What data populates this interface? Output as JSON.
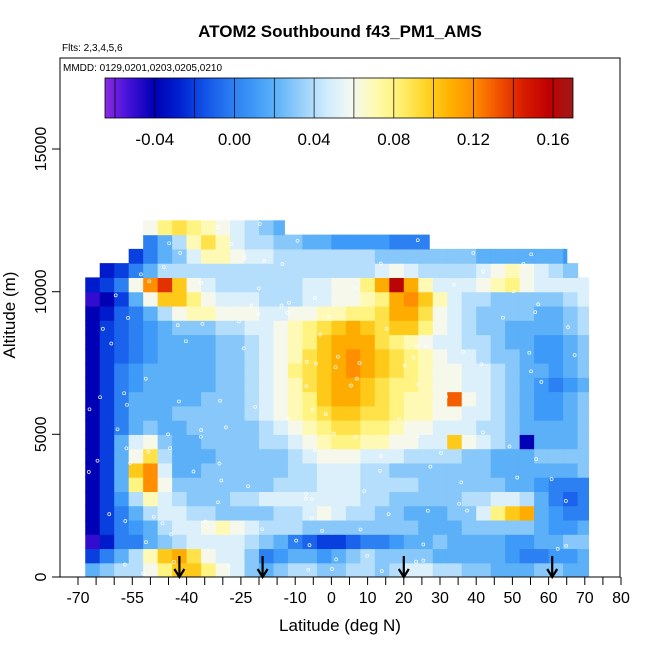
{
  "chart_data": {
    "type": "heatmap",
    "title": "ATOM2 Southbound f43_PM1_AMS",
    "flights_text": "Flts: 2,3,4,5,6",
    "mmdd_text": "MMDD: 0129,0201,0203,0205,0210",
    "xlabel": "Latitude (deg N)",
    "ylabel": "Altitude (m)",
    "xlim": [
      -70,
      82
    ],
    "ylim": [
      0,
      17500
    ],
    "x_ticks": [
      -70,
      -55,
      -40,
      -25,
      -10,
      0,
      10,
      20,
      30,
      40,
      50,
      60,
      70,
      80
    ],
    "x_tick_labels": [
      "-70",
      "-55",
      "-40",
      "-25",
      "-10",
      "0",
      "10",
      "20",
      "30",
      "40",
      "50",
      "60",
      "70",
      "80"
    ],
    "x_minor_ticks": [
      -65,
      -60,
      -50,
      -45,
      -35,
      -30,
      -20,
      -15,
      -5,
      5,
      15,
      25,
      35,
      45,
      55,
      65,
      75
    ],
    "y_ticks": [
      0,
      5000,
      10000,
      15000
    ],
    "y_tick_labels": [
      "0",
      "5000",
      "10000",
      "15000"
    ],
    "colorbar": {
      "range": [
        -0.065,
        0.17
      ],
      "tick_values": [
        -0.04,
        0.0,
        0.04,
        0.08,
        0.12,
        0.16
      ],
      "tick_labels": [
        "-0.04",
        "0.00",
        "0.04",
        "0.08",
        "0.12",
        "0.16"
      ],
      "colors": [
        "#8a2be2",
        "#4010d8",
        "#0000b4",
        "#0020d0",
        "#1050e8",
        "#2878f0",
        "#3c98f8",
        "#60b4f8",
        "#9ad0fb",
        "#d0ecfd",
        "#f4f8f2",
        "#fffab0",
        "#fff070",
        "#ffd528",
        "#ffb200",
        "#ff8c00",
        "#f05000",
        "#d81c00",
        "#c00000",
        "#a01818"
      ]
    },
    "arrow_latitudes": [
      -42,
      -19,
      20,
      61
    ],
    "lat_bins": [
      -68,
      -64,
      -60,
      -56,
      -52,
      -48,
      -44,
      -40,
      -36,
      -32,
      -28,
      -24,
      -20,
      -16,
      -12,
      -8,
      -4,
      0,
      4,
      8,
      12,
      16,
      20,
      24,
      28,
      32,
      36,
      40,
      44,
      48,
      52,
      56,
      60,
      64,
      68
    ],
    "layers": [
      {
        "alt": [
          0,
          500
        ],
        "lat": [
          -68,
          71
        ],
        "values": [
          0.02,
          0.03,
          0.04,
          0.04,
          0.06,
          0.08,
          0.1,
          0.1,
          0.08,
          0.06,
          0.05,
          0.03,
          0.02,
          0.03,
          0.04,
          0.04,
          0.03,
          0.03,
          0.04,
          0.04,
          0.03,
          0.04,
          0.05,
          0.05,
          0.04,
          0.04,
          0.03,
          0.03,
          0.02,
          0.02,
          0.02,
          0.03,
          0.03,
          0.02,
          0.02
        ]
      },
      {
        "alt": [
          500,
          1000
        ],
        "lat": [
          -68,
          71
        ],
        "values": [
          -0.02,
          0.0,
          0.02,
          0.04,
          0.07,
          0.1,
          0.11,
          0.09,
          0.06,
          0.05,
          0.05,
          0.03,
          0.0,
          0.01,
          0.02,
          0.02,
          0.01,
          0.02,
          0.03,
          0.04,
          0.03,
          0.03,
          0.03,
          0.03,
          0.02,
          0.02,
          0.02,
          0.02,
          0.02,
          0.01,
          0.0,
          0.0,
          0.01,
          0.01,
          0.02
        ]
      },
      {
        "alt": [
          1000,
          1500
        ],
        "lat": [
          -68,
          71
        ],
        "values": [
          -0.05,
          -0.03,
          0.0,
          0.0,
          0.02,
          0.03,
          0.04,
          0.05,
          0.05,
          0.05,
          0.05,
          0.04,
          0.03,
          0.02,
          0.0,
          -0.01,
          -0.02,
          -0.02,
          -0.01,
          0.0,
          0.0,
          0.01,
          0.02,
          0.02,
          0.03,
          0.02,
          0.02,
          0.02,
          0.02,
          0.01,
          0.01,
          0.02,
          0.02,
          0.03,
          0.03
        ]
      },
      {
        "alt": [
          1500,
          2000
        ],
        "lat": [
          -68,
          71
        ],
        "values": [
          -0.04,
          -0.02,
          0.0,
          0.01,
          0.02,
          0.04,
          0.05,
          0.05,
          0.06,
          0.07,
          0.06,
          0.05,
          0.04,
          0.04,
          0.04,
          0.03,
          0.03,
          0.03,
          0.03,
          0.03,
          0.03,
          0.03,
          0.03,
          0.02,
          0.02,
          0.02,
          0.03,
          0.03,
          0.03,
          0.03,
          0.03,
          0.02,
          0.01,
          0.01,
          0.02
        ]
      },
      {
        "alt": [
          2000,
          2500
        ],
        "lat": [
          -68,
          71
        ],
        "values": [
          -0.04,
          -0.02,
          0.0,
          0.02,
          0.04,
          0.05,
          0.05,
          0.04,
          0.04,
          0.03,
          0.03,
          0.03,
          0.03,
          0.04,
          0.04,
          0.05,
          0.06,
          0.05,
          0.04,
          0.04,
          0.03,
          0.03,
          0.02,
          0.02,
          0.02,
          0.03,
          0.03,
          0.05,
          0.08,
          0.1,
          0.11,
          0.02,
          0.01,
          0.0,
          0.0
        ]
      },
      {
        "alt": [
          2500,
          3000
        ],
        "lat": [
          -68,
          71
        ],
        "values": [
          -0.04,
          -0.02,
          0.01,
          0.04,
          0.07,
          0.05,
          0.04,
          0.03,
          0.03,
          0.03,
          0.04,
          0.04,
          0.05,
          0.05,
          0.05,
          0.05,
          0.05,
          0.05,
          0.05,
          0.04,
          0.04,
          0.03,
          0.03,
          0.03,
          0.03,
          0.03,
          0.04,
          0.04,
          0.05,
          0.05,
          0.04,
          0.02,
          0.0,
          -0.01,
          0.0
        ]
      },
      {
        "alt": [
          3000,
          3500
        ],
        "lat": [
          -68,
          71
        ],
        "values": [
          -0.04,
          -0.02,
          0.02,
          0.08,
          0.12,
          0.06,
          0.03,
          0.03,
          0.03,
          0.03,
          0.03,
          0.03,
          0.03,
          0.04,
          0.04,
          0.04,
          0.05,
          0.05,
          0.05,
          0.04,
          0.04,
          0.04,
          0.04,
          0.03,
          0.03,
          0.03,
          0.03,
          0.03,
          0.03,
          0.02,
          0.02,
          0.01,
          0.0,
          0.0,
          0.0
        ]
      },
      {
        "alt": [
          3500,
          4000
        ],
        "lat": [
          -68,
          71
        ],
        "values": [
          -0.04,
          -0.02,
          0.02,
          0.1,
          0.12,
          0.05,
          0.02,
          0.02,
          0.03,
          0.03,
          0.03,
          0.03,
          0.03,
          0.03,
          0.04,
          0.04,
          0.05,
          0.05,
          0.05,
          0.04,
          0.04,
          0.03,
          0.03,
          0.03,
          0.03,
          0.03,
          0.03,
          0.03,
          0.02,
          0.02,
          0.02,
          0.02,
          0.02,
          0.02,
          0.03
        ]
      },
      {
        "alt": [
          4000,
          4500
        ],
        "lat": [
          -68,
          71
        ],
        "values": [
          -0.04,
          -0.02,
          0.02,
          0.06,
          0.09,
          0.04,
          0.02,
          0.02,
          0.02,
          0.03,
          0.03,
          0.03,
          0.03,
          0.03,
          0.04,
          0.05,
          0.06,
          0.06,
          0.06,
          0.05,
          0.05,
          0.05,
          0.04,
          0.04,
          0.04,
          0.04,
          0.03,
          0.03,
          0.02,
          0.02,
          0.02,
          0.03,
          0.03,
          0.03,
          0.03
        ]
      },
      {
        "alt": [
          4500,
          5000
        ],
        "lat": [
          -68,
          71
        ],
        "values": [
          -0.04,
          -0.02,
          0.02,
          0.05,
          0.06,
          0.03,
          0.02,
          0.02,
          0.03,
          0.03,
          0.03,
          0.03,
          0.04,
          0.04,
          0.05,
          0.06,
          0.07,
          0.08,
          0.08,
          0.07,
          0.07,
          0.06,
          0.06,
          0.05,
          0.05,
          0.1,
          0.06,
          0.05,
          0.04,
          0.03,
          -0.04,
          0.02,
          0.02,
          0.02,
          0.03
        ]
      },
      {
        "alt": [
          5000,
          5500
        ],
        "lat": [
          -68,
          71
        ],
        "values": [
          -0.04,
          -0.02,
          0.0,
          0.02,
          0.03,
          0.02,
          0.02,
          0.03,
          0.03,
          0.03,
          0.03,
          0.03,
          0.04,
          0.05,
          0.06,
          0.07,
          0.08,
          0.09,
          0.09,
          0.08,
          0.08,
          0.07,
          0.06,
          0.06,
          0.05,
          0.05,
          0.05,
          0.04,
          0.04,
          0.03,
          0.02,
          0.02,
          0.02,
          0.02,
          0.03
        ]
      },
      {
        "alt": [
          5500,
          6000
        ],
        "lat": [
          -68,
          71
        ],
        "values": [
          -0.04,
          -0.02,
          0.0,
          0.02,
          0.02,
          0.02,
          0.03,
          0.03,
          0.03,
          0.03,
          0.03,
          0.04,
          0.05,
          0.06,
          0.07,
          0.08,
          0.09,
          0.1,
          0.1,
          0.09,
          0.09,
          0.08,
          0.07,
          0.07,
          0.06,
          0.06,
          0.05,
          0.05,
          0.04,
          0.03,
          0.02,
          0.01,
          0.01,
          0.02,
          0.03
        ]
      },
      {
        "alt": [
          6000,
          6500
        ],
        "lat": [
          -68,
          71
        ],
        "values": [
          -0.04,
          -0.02,
          0.0,
          0.02,
          0.02,
          0.02,
          0.02,
          0.02,
          0.03,
          0.03,
          0.03,
          0.04,
          0.05,
          0.06,
          0.07,
          0.08,
          0.1,
          0.11,
          0.11,
          0.1,
          0.09,
          0.08,
          0.07,
          0.07,
          0.06,
          0.13,
          0.06,
          0.05,
          0.04,
          0.03,
          0.02,
          0.01,
          0.01,
          0.02,
          0.03
        ]
      },
      {
        "alt": [
          6500,
          7000
        ],
        "lat": [
          -68,
          71
        ],
        "values": [
          -0.04,
          -0.02,
          0.0,
          0.01,
          0.02,
          0.02,
          0.02,
          0.02,
          0.02,
          0.03,
          0.03,
          0.04,
          0.05,
          0.06,
          0.07,
          0.09,
          0.1,
          0.11,
          0.11,
          0.1,
          0.09,
          0.08,
          0.08,
          0.07,
          0.06,
          0.06,
          0.05,
          0.05,
          0.04,
          0.03,
          0.02,
          0.01,
          0.0,
          0.01,
          0.02
        ]
      },
      {
        "alt": [
          7000,
          7500
        ],
        "lat": [
          -68,
          71
        ],
        "values": [
          -0.04,
          -0.02,
          0.0,
          0.01,
          0.02,
          0.02,
          0.02,
          0.02,
          0.02,
          0.03,
          0.03,
          0.04,
          0.05,
          0.06,
          0.08,
          0.09,
          0.1,
          0.11,
          0.12,
          0.11,
          0.1,
          0.09,
          0.08,
          0.07,
          0.06,
          0.06,
          0.05,
          0.05,
          0.04,
          0.03,
          0.02,
          0.02,
          0.01,
          0.02,
          0.03
        ]
      },
      {
        "alt": [
          7500,
          8000
        ],
        "lat": [
          -68,
          71
        ],
        "values": [
          -0.04,
          -0.02,
          -0.01,
          0.0,
          0.01,
          0.02,
          0.02,
          0.02,
          0.02,
          0.03,
          0.03,
          0.04,
          0.05,
          0.06,
          0.07,
          0.09,
          0.1,
          0.11,
          0.12,
          0.11,
          0.1,
          0.09,
          0.08,
          0.07,
          0.06,
          0.05,
          0.05,
          0.04,
          0.03,
          0.03,
          0.02,
          0.01,
          0.01,
          0.02,
          0.03
        ]
      },
      {
        "alt": [
          8000,
          8500
        ],
        "lat": [
          -68,
          71
        ],
        "values": [
          -0.04,
          -0.02,
          -0.01,
          0.0,
          0.01,
          0.02,
          0.02,
          0.02,
          0.02,
          0.03,
          0.03,
          0.04,
          0.05,
          0.06,
          0.07,
          0.08,
          0.1,
          0.11,
          0.11,
          0.11,
          0.09,
          0.08,
          0.07,
          0.06,
          0.05,
          0.05,
          0.04,
          0.04,
          0.03,
          0.02,
          0.02,
          0.01,
          0.01,
          0.02,
          0.03
        ]
      },
      {
        "alt": [
          8500,
          9000
        ],
        "lat": [
          -68,
          71
        ],
        "values": [
          -0.04,
          -0.02,
          -0.01,
          0.0,
          0.01,
          0.02,
          0.03,
          0.03,
          0.03,
          0.04,
          0.04,
          0.05,
          0.05,
          0.06,
          0.07,
          0.08,
          0.09,
          0.1,
          0.11,
          0.1,
          0.09,
          0.1,
          0.1,
          0.08,
          0.06,
          0.05,
          0.04,
          0.03,
          0.03,
          0.02,
          0.02,
          0.02,
          0.02,
          0.03,
          0.04
        ]
      },
      {
        "alt": [
          9000,
          9500
        ],
        "lat": [
          -68,
          71
        ],
        "values": [
          -0.04,
          -0.03,
          -0.01,
          0.0,
          0.02,
          0.04,
          0.06,
          0.07,
          0.07,
          0.06,
          0.06,
          0.06,
          0.05,
          0.05,
          0.06,
          0.06,
          0.07,
          0.07,
          0.08,
          0.08,
          0.09,
          0.11,
          0.11,
          0.09,
          0.06,
          0.05,
          0.04,
          0.03,
          0.03,
          0.03,
          0.03,
          0.02,
          0.02,
          0.03,
          0.04
        ]
      },
      {
        "alt": [
          9500,
          10000
        ],
        "lat": [
          -68,
          71
        ],
        "values": [
          -0.05,
          -0.04,
          -0.02,
          0.02,
          0.06,
          0.1,
          0.1,
          0.08,
          0.06,
          0.05,
          0.05,
          0.05,
          0.04,
          0.04,
          0.04,
          0.05,
          0.05,
          0.06,
          0.06,
          0.07,
          0.08,
          0.11,
          0.12,
          0.1,
          0.07,
          0.05,
          0.04,
          0.04,
          0.03,
          0.03,
          0.03,
          0.03,
          0.03,
          0.04,
          0.05
        ]
      },
      {
        "alt": [
          10000,
          10500
        ],
        "lat": [
          -68,
          71
        ],
        "values": [
          -0.03,
          -0.02,
          0.0,
          0.06,
          0.12,
          0.14,
          0.1,
          0.06,
          0.05,
          0.04,
          0.04,
          0.04,
          0.04,
          0.04,
          0.04,
          0.05,
          0.05,
          0.06,
          0.06,
          0.08,
          0.11,
          0.16,
          0.11,
          0.07,
          0.05,
          0.05,
          0.05,
          0.06,
          0.07,
          0.08,
          0.06,
          0.05,
          0.05,
          0.05,
          0.05
        ]
      },
      {
        "alt": [
          10500,
          11000
        ],
        "lat": [
          -64,
          68
        ],
        "values": [
          -0.03,
          -0.02,
          0.0,
          0.02,
          0.04,
          0.04,
          0.04,
          0.04,
          0.04,
          0.04,
          0.04,
          0.04,
          0.04,
          0.04,
          0.04,
          0.04,
          0.04,
          0.04,
          0.04,
          0.05,
          0.06,
          0.05,
          0.04,
          0.04,
          0.04,
          0.04,
          0.05,
          0.06,
          0.07,
          0.06,
          0.05,
          0.04,
          0.03,
          0.03
        ]
      },
      {
        "alt": [
          11000,
          11500
        ],
        "lat": [
          -58,
          65
        ],
        "values": [
          -0.02,
          0.0,
          0.02,
          0.03,
          0.05,
          0.07,
          0.07,
          0.06,
          0.05,
          0.05,
          0.04,
          0.04,
          0.04,
          0.04,
          0.04,
          0.04,
          0.04,
          0.03,
          0.03,
          0.03,
          0.03,
          0.03,
          0.03,
          0.03,
          0.02,
          0.02,
          0.02,
          0.02,
          0.02,
          0.02,
          0.01,
          0.0
        ]
      },
      {
        "alt": [
          11500,
          12000
        ],
        "lat": [
          -55,
          27
        ],
        "values": [
          0.0,
          0.02,
          0.04,
          0.07,
          0.09,
          0.07,
          0.05,
          0.04,
          0.04,
          0.03,
          0.03,
          0.02,
          0.02,
          0.01,
          0.01,
          0.01,
          0.01,
          0.0,
          0.0,
          0.0,
          0.0
        ]
      },
      {
        "alt": [
          12000,
          12500
        ],
        "lat": [
          -52,
          -13
        ],
        "values": [
          0.06,
          0.08,
          0.09,
          0.08,
          0.07,
          0.06,
          0.05,
          0.04,
          0.03,
          0.02
        ]
      }
    ]
  }
}
